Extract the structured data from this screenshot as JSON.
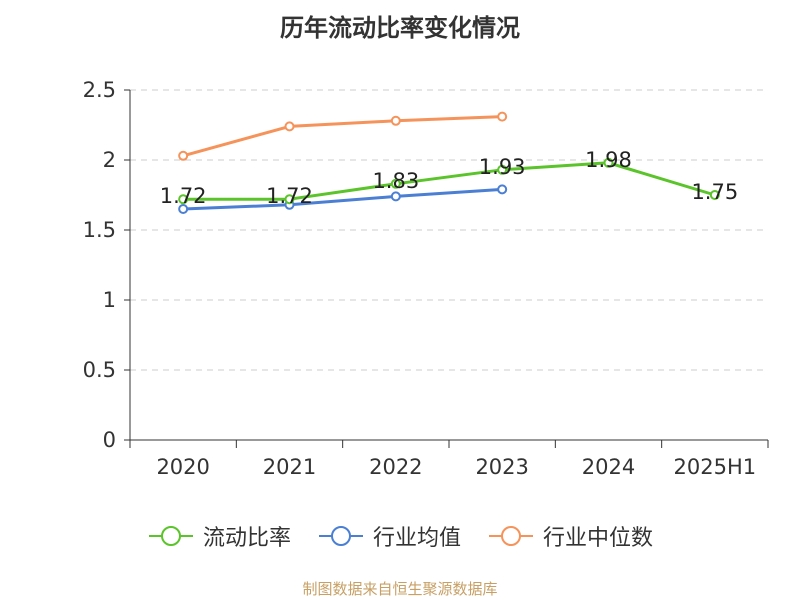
{
  "chart_data": {
    "type": "line",
    "title": "历年流动比率变化情况",
    "categories": [
      "2020",
      "2021",
      "2022",
      "2023",
      "2024",
      "2025H1"
    ],
    "ylim": [
      0,
      2.5
    ],
    "yticks": [
      "0",
      "0.5",
      "1",
      "1.5",
      "2",
      "2.5"
    ],
    "grid": true,
    "legend_position": "bottom",
    "series": [
      {
        "name": "流动比率",
        "color": "#5ac42a",
        "values": [
          1.72,
          1.72,
          1.83,
          1.93,
          1.98,
          1.75
        ],
        "labels": [
          "1.72",
          "1.72",
          "1.83",
          "1.93",
          "1.98",
          "1.75"
        ]
      },
      {
        "name": "行业均值",
        "color": "#4a7fd4",
        "values": [
          1.65,
          1.68,
          1.74,
          1.79,
          null,
          null
        ]
      },
      {
        "name": "行业中位数",
        "color": "#f5935a",
        "values": [
          2.03,
          2.24,
          2.28,
          2.31,
          null,
          null
        ]
      }
    ]
  },
  "source": "制图数据来自恒生聚源数据库"
}
